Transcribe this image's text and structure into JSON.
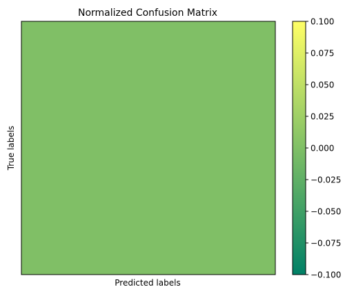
{
  "chart_data": {
    "type": "heatmap",
    "title": "Normalized Confusion Matrix",
    "xlabel": "Predicted labels",
    "ylabel": "True labels",
    "x_categories": [],
    "y_categories": [],
    "values": [
      [
        0.0
      ]
    ],
    "colormap": "summer",
    "colorbar": {
      "vmin": -0.1,
      "vmax": 0.1,
      "ticks": [
        -0.1,
        -0.075,
        -0.05,
        -0.025,
        0.0,
        0.025,
        0.05,
        0.075,
        0.1
      ],
      "tick_labels": [
        "−0.100",
        "−0.075",
        "−0.050",
        "−0.025",
        "0.000",
        "0.025",
        "0.050",
        "0.075",
        "0.100"
      ]
    },
    "colors": {
      "cmap_low": "#008066",
      "cmap_high": "#ffff66",
      "cell": "#80bf66"
    }
  }
}
